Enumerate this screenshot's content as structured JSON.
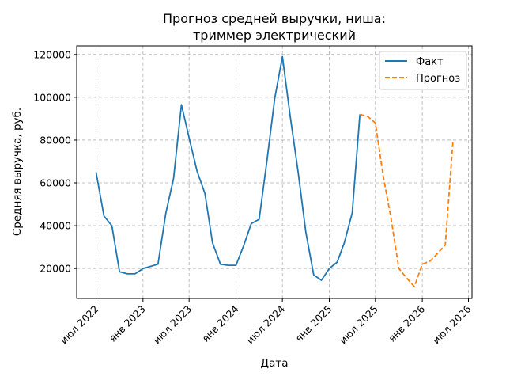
{
  "chart_data": {
    "type": "line",
    "title_lines": [
      "Прогноз средней выручки, ниша:",
      "триммер электрический"
    ],
    "xlabel": "Дата",
    "ylabel": "Средняя выручка, руб.",
    "x_tick_labels": [
      "июл 2022",
      "янв 2023",
      "июл 2023",
      "янв 2024",
      "июл 2024",
      "янв 2025",
      "июл 2025",
      "янв 2026",
      "июл 2026"
    ],
    "x_tick_dates": [
      "2022-07-01",
      "2023-01-01",
      "2023-07-01",
      "2024-01-01",
      "2024-07-01",
      "2025-01-01",
      "2025-07-01",
      "2026-01-01",
      "2026-07-01"
    ],
    "xlim": [
      "2022-04-16",
      "2026-07-15"
    ],
    "y_tick_labels": [
      "20000",
      "40000",
      "60000",
      "80000",
      "100000",
      "120000"
    ],
    "y_ticks": [
      20000,
      40000,
      60000,
      80000,
      100000,
      120000
    ],
    "ylim": [
      6000,
      124000
    ],
    "grid": true,
    "legend_position": "upper right",
    "series": [
      {
        "name": "Факт",
        "color": "#1f77b4",
        "style": "solid",
        "points": [
          [
            "2022-07-01",
            65000
          ],
          [
            "2022-08-01",
            44500
          ],
          [
            "2022-09-01",
            40000
          ],
          [
            "2022-10-01",
            18500
          ],
          [
            "2022-11-01",
            17500
          ],
          [
            "2022-12-01",
            17500
          ],
          [
            "2023-01-01",
            20000
          ],
          [
            "2023-02-01",
            21000
          ],
          [
            "2023-03-01",
            22000
          ],
          [
            "2023-04-01",
            46000
          ],
          [
            "2023-05-01",
            62000
          ],
          [
            "2023-06-01",
            96500
          ],
          [
            "2023-07-01",
            81000
          ],
          [
            "2023-08-01",
            65500
          ],
          [
            "2023-09-01",
            55000
          ],
          [
            "2023-10-01",
            32000
          ],
          [
            "2023-11-01",
            22000
          ],
          [
            "2023-12-01",
            21500
          ],
          [
            "2024-01-01",
            21500
          ],
          [
            "2024-02-01",
            31000
          ],
          [
            "2024-03-01",
            41000
          ],
          [
            "2024-04-01",
            43000
          ],
          [
            "2024-05-01",
            70000
          ],
          [
            "2024-06-01",
            99500
          ],
          [
            "2024-07-01",
            119000
          ],
          [
            "2024-08-01",
            91000
          ],
          [
            "2024-09-01",
            65000
          ],
          [
            "2024-10-01",
            37000
          ],
          [
            "2024-11-01",
            17000
          ],
          [
            "2024-12-01",
            14500
          ],
          [
            "2025-01-01",
            20000
          ],
          [
            "2025-02-01",
            23000
          ],
          [
            "2025-03-01",
            32000
          ],
          [
            "2025-04-01",
            46000
          ],
          [
            "2025-05-01",
            92000
          ]
        ]
      },
      {
        "name": "Прогноз",
        "color": "#ff7f0e",
        "style": "dashed",
        "points": [
          [
            "2025-05-01",
            92000
          ],
          [
            "2025-06-01",
            91000
          ],
          [
            "2025-07-01",
            88000
          ],
          [
            "2025-08-01",
            63000
          ],
          [
            "2025-09-01",
            43000
          ],
          [
            "2025-10-01",
            20000
          ],
          [
            "2025-11-01",
            15500
          ],
          [
            "2025-12-01",
            11500
          ],
          [
            "2026-01-01",
            22000
          ],
          [
            "2026-02-01",
            23500
          ],
          [
            "2026-03-01",
            27000
          ],
          [
            "2026-04-01",
            31000
          ],
          [
            "2026-05-01",
            79000
          ]
        ]
      }
    ]
  }
}
